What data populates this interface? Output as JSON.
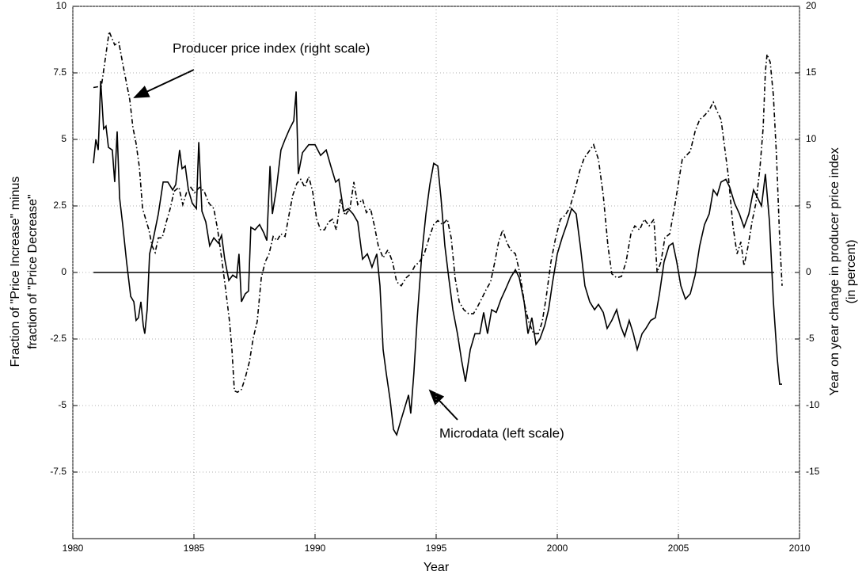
{
  "chart_data": {
    "type": "line",
    "xlabel": "Year",
    "ylabel": [
      "Fraction of \"Price Increase\" minus",
      "fraction of \"Price Decrease\""
    ],
    "y2label": [
      "Year on year change in producer price index",
      "(in percent)"
    ],
    "annotations": [
      "Producer price index (right scale)",
      "Microdata (left scale)"
    ],
    "xlim": [
      1980,
      2010
    ],
    "xticks": [
      1980,
      1985,
      1990,
      1995,
      2000,
      2005,
      2010
    ],
    "ylim": [
      -10,
      10
    ],
    "yticks": [
      -7.5,
      -5,
      -2.5,
      0,
      2.5,
      5,
      7.5,
      10
    ],
    "y2lim": [
      -20,
      20
    ],
    "y2ticks": [
      -15,
      -10,
      -5,
      0,
      5,
      10,
      15,
      20
    ],
    "grid": true,
    "series": [
      {
        "name": "Microdata",
        "color": "#000000",
        "dash": "solid",
        "x": [
          1980.85,
          1980.95,
          1981.05,
          1981.15,
          1981.27,
          1981.37,
          1981.47,
          1981.63,
          1981.73,
          1981.83,
          1981.93,
          1982.06,
          1982.22,
          1982.39,
          1982.52,
          1982.61,
          1982.71,
          1982.81,
          1982.91,
          1982.97,
          1983.07,
          1983.17,
          1983.33,
          1983.53,
          1983.73,
          1983.92,
          1984.12,
          1984.25,
          1984.41,
          1984.51,
          1984.64,
          1984.77,
          1984.93,
          1985.1,
          1985.2,
          1985.33,
          1985.49,
          1985.65,
          1985.82,
          1986.01,
          1986.14,
          1986.27,
          1986.44,
          1986.6,
          1986.76,
          1986.86,
          1986.96,
          1987.12,
          1987.25,
          1987.35,
          1987.52,
          1987.71,
          1987.88,
          1988.01,
          1988.14,
          1988.24,
          1988.4,
          1988.59,
          1988.76,
          1988.95,
          1989.12,
          1989.22,
          1989.31,
          1989.48,
          1989.74,
          1990.0,
          1990.23,
          1990.46,
          1990.65,
          1990.85,
          1990.98,
          1991.18,
          1991.37,
          1991.57,
          1991.76,
          1991.96,
          1992.16,
          1992.35,
          1992.55,
          1992.68,
          1992.81,
          1992.94,
          1993.1,
          1993.24,
          1993.37,
          1993.53,
          1993.73,
          1993.86,
          1993.95,
          1994.08,
          1994.22,
          1994.41,
          1994.58,
          1994.74,
          1994.9,
          1995.07,
          1995.2,
          1995.36,
          1995.52,
          1995.69,
          1995.88,
          1996.05,
          1996.21,
          1996.41,
          1996.6,
          1996.8,
          1996.96,
          1997.12,
          1997.29,
          1997.48,
          1997.68,
          1997.88,
          1998.07,
          1998.27,
          1998.43,
          1998.63,
          1998.79,
          1998.95,
          1999.12,
          1999.28,
          1999.48,
          1999.64,
          1999.8,
          2000.0,
          2000.2,
          2000.39,
          2000.59,
          2000.78,
          2000.95,
          2001.14,
          2001.34,
          2001.54,
          2001.7,
          2001.9,
          2002.06,
          2002.25,
          2002.45,
          2002.61,
          2002.78,
          2002.97,
          2003.14,
          2003.3,
          2003.5,
          2003.66,
          2003.86,
          2004.05,
          2004.22,
          2004.41,
          2004.61,
          2004.77,
          2004.93,
          2005.1,
          2005.29,
          2005.49,
          2005.69,
          2005.88,
          2006.08,
          2006.27,
          2006.44,
          2006.6,
          2006.76,
          2006.96,
          2007.12,
          2007.32,
          2007.52,
          2007.71,
          2007.91,
          2008.1,
          2008.27,
          2008.43,
          2008.59,
          2008.76,
          2008.92,
          2009.08,
          2009.18,
          2009.28
        ],
        "values": [
          4.1,
          5.0,
          4.6,
          7.2,
          5.4,
          5.5,
          4.7,
          4.6,
          3.4,
          5.3,
          2.8,
          1.8,
          0.4,
          -0.9,
          -1.1,
          -1.8,
          -1.7,
          -1.1,
          -2.0,
          -2.3,
          -1.4,
          0.7,
          1.3,
          2.2,
          3.4,
          3.4,
          3.1,
          3.3,
          4.6,
          3.9,
          4.0,
          3.1,
          2.6,
          2.4,
          4.9,
          2.3,
          1.9,
          1.0,
          1.3,
          1.1,
          1.4,
          0.5,
          -0.3,
          -0.1,
          -0.2,
          0.7,
          -1.1,
          -0.8,
          -0.7,
          1.7,
          1.6,
          1.8,
          1.5,
          1.2,
          4.0,
          2.2,
          3.1,
          4.6,
          5.0,
          5.4,
          5.7,
          6.8,
          3.7,
          4.5,
          4.8,
          4.8,
          4.4,
          4.6,
          4.0,
          3.4,
          3.5,
          2.3,
          2.4,
          2.2,
          1.9,
          0.5,
          0.7,
          0.2,
          0.7,
          -0.5,
          -2.9,
          -3.8,
          -4.8,
          -5.9,
          -6.1,
          -5.6,
          -5.0,
          -4.6,
          -5.3,
          -3.8,
          -1.7,
          0.7,
          2.2,
          3.3,
          4.1,
          4.0,
          2.8,
          1.0,
          -0.2,
          -1.4,
          -2.3,
          -3.3,
          -4.1,
          -2.9,
          -2.3,
          -2.3,
          -1.5,
          -2.3,
          -1.4,
          -1.5,
          -1.0,
          -0.6,
          -0.2,
          0.1,
          -0.2,
          -1.1,
          -2.3,
          -1.7,
          -2.7,
          -2.5,
          -2.0,
          -1.4,
          -0.4,
          0.7,
          1.3,
          1.8,
          2.4,
          2.2,
          1.0,
          -0.5,
          -1.1,
          -1.4,
          -1.2,
          -1.5,
          -2.1,
          -1.8,
          -1.4,
          -2.0,
          -2.4,
          -1.8,
          -2.3,
          -2.9,
          -2.3,
          -2.1,
          -1.8,
          -1.7,
          -0.8,
          0.4,
          1.0,
          1.1,
          0.4,
          -0.5,
          -1.0,
          -0.8,
          -0.1,
          1.0,
          1.8,
          2.2,
          3.1,
          2.9,
          3.4,
          3.5,
          3.2,
          2.6,
          2.2,
          1.7,
          2.2,
          3.1,
          2.8,
          2.5,
          3.7,
          1.9,
          -1.1,
          -3.2,
          -4.2,
          -4.2
        ]
      },
      {
        "name": "Producer price index",
        "color": "#000000",
        "dash": "dashdot",
        "axis": "y2",
        "x": [
          1980.85,
          1981.18,
          1981.5,
          1981.73,
          1981.9,
          1982.06,
          1982.22,
          1982.35,
          1982.48,
          1982.61,
          1982.75,
          1982.88,
          1983.01,
          1983.14,
          1983.27,
          1983.4,
          1983.53,
          1983.69,
          1983.86,
          1984.02,
          1984.18,
          1984.38,
          1984.54,
          1984.71,
          1984.87,
          1985.03,
          1985.23,
          1985.42,
          1985.62,
          1985.82,
          1985.98,
          1986.14,
          1986.31,
          1986.47,
          1986.57,
          1986.67,
          1986.8,
          1986.96,
          1987.12,
          1987.29,
          1987.45,
          1987.61,
          1987.78,
          1987.94,
          1988.1,
          1988.27,
          1988.43,
          1988.59,
          1988.76,
          1988.92,
          1989.08,
          1989.25,
          1989.41,
          1989.58,
          1989.74,
          1989.9,
          1990.07,
          1990.23,
          1990.39,
          1990.56,
          1990.72,
          1990.88,
          1991.05,
          1991.24,
          1991.44,
          1991.6,
          1991.76,
          1991.96,
          1992.12,
          1992.29,
          1992.45,
          1992.61,
          1992.81,
          1993.01,
          1993.2,
          1993.37,
          1993.56,
          1993.76,
          1993.95,
          1994.12,
          1994.31,
          1994.51,
          1994.71,
          1994.9,
          1995.07,
          1995.26,
          1995.46,
          1995.62,
          1995.78,
          1995.95,
          1996.14,
          1996.34,
          1996.54,
          1996.73,
          1996.9,
          1997.06,
          1997.25,
          1997.42,
          1997.58,
          1997.75,
          1997.91,
          1998.07,
          1998.27,
          1998.46,
          1998.66,
          1998.82,
          1999.02,
          1999.22,
          1999.38,
          1999.54,
          1999.74,
          1999.93,
          2000.13,
          2000.33,
          2000.52,
          2000.72,
          2000.92,
          2001.11,
          2001.31,
          2001.5,
          2001.7,
          2001.9,
          2002.09,
          2002.25,
          2002.45,
          2002.65,
          2002.84,
          2003.04,
          2003.2,
          2003.4,
          2003.59,
          2003.79,
          2003.99,
          2004.12,
          2004.28,
          2004.44,
          2004.64,
          2004.84,
          2005.0,
          2005.16,
          2005.33,
          2005.49,
          2005.69,
          2005.88,
          2006.08,
          2006.27,
          2006.44,
          2006.6,
          2006.76,
          2006.93,
          2007.06,
          2007.25,
          2007.42,
          2007.58,
          2007.71,
          2007.88,
          2008.04,
          2008.2,
          2008.37,
          2008.5,
          2008.59,
          2008.66,
          2008.79,
          2008.92,
          2009.05,
          2009.18,
          2009.28
        ],
        "values": [
          13.9,
          14.0,
          18.1,
          17.1,
          17.3,
          15.7,
          14.2,
          13.0,
          10.9,
          9.7,
          7.9,
          4.8,
          4.0,
          3.2,
          2.0,
          1.5,
          2.6,
          2.6,
          3.8,
          4.8,
          6.1,
          6.4,
          5.1,
          6.1,
          6.4,
          6.0,
          6.4,
          6.1,
          5.2,
          4.8,
          3.2,
          1.1,
          -1.3,
          -3.7,
          -5.8,
          -8.9,
          -9.0,
          -8.8,
          -7.9,
          -6.7,
          -4.9,
          -3.7,
          -0.4,
          0.8,
          1.4,
          2.7,
          2.4,
          2.9,
          2.7,
          4.3,
          5.8,
          6.7,
          7.0,
          6.4,
          7.2,
          6.1,
          4.0,
          3.2,
          3.2,
          3.8,
          4.0,
          3.2,
          5.5,
          4.3,
          4.8,
          6.8,
          5.1,
          5.5,
          4.5,
          4.8,
          3.5,
          2.0,
          1.1,
          1.7,
          0.8,
          -0.7,
          -1.0,
          -0.4,
          -0.1,
          0.5,
          0.8,
          1.4,
          2.6,
          3.6,
          3.9,
          3.6,
          4.0,
          2.6,
          -0.4,
          -2.2,
          -2.8,
          -3.1,
          -3.1,
          -2.5,
          -1.9,
          -1.3,
          -0.7,
          0.8,
          2.3,
          3.2,
          2.3,
          1.7,
          1.4,
          -0.1,
          -2.5,
          -3.7,
          -4.6,
          -4.6,
          -3.7,
          -1.9,
          0.8,
          2.6,
          4.0,
          4.3,
          4.9,
          6.1,
          7.6,
          8.6,
          9.1,
          9.6,
          8.5,
          5.8,
          2.0,
          -0.1,
          -0.4,
          -0.3,
          0.8,
          2.9,
          3.5,
          3.2,
          4.0,
          3.5,
          4.0,
          0.0,
          0.8,
          2.6,
          2.9,
          4.9,
          6.7,
          8.5,
          8.8,
          9.1,
          10.6,
          11.5,
          11.8,
          12.2,
          12.8,
          12.1,
          11.5,
          9.1,
          7.3,
          3.5,
          1.4,
          2.3,
          0.5,
          2.0,
          3.8,
          5.2,
          7.9,
          10.9,
          15.1,
          16.4,
          15.8,
          13.3,
          8.8,
          2.6,
          -1.0
        ]
      }
    ]
  }
}
